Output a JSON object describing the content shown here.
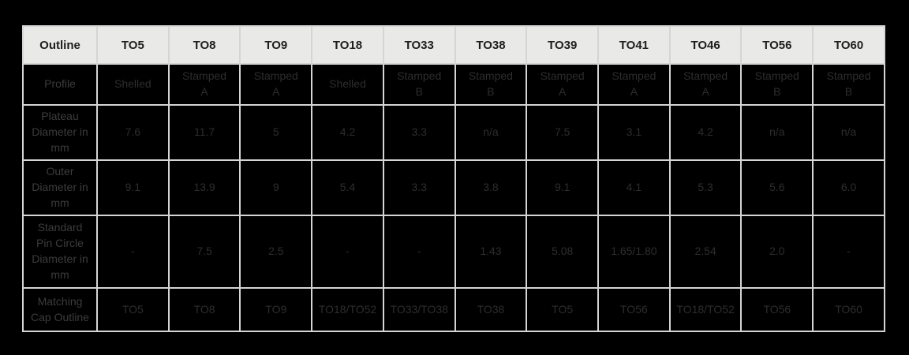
{
  "theme": {
    "page_bg": "#000000",
    "header_bg": "#e9e9e8",
    "header_text": "#1e1e1e",
    "border": "#d5d5d5",
    "cell_bg": "#000000",
    "value_text": "#2d2d2d",
    "label_text": "#3c3c3c"
  },
  "table": {
    "header": [
      "Outline",
      "TO5",
      "TO8",
      "TO9",
      "TO18",
      "TO33",
      "TO38",
      "TO39",
      "TO41",
      "TO46",
      "TO56",
      "TO60"
    ],
    "rows": [
      {
        "label": "Profile",
        "values": [
          "Shelled",
          "Stamped\nA",
          "Stamped\nA",
          "Shelled",
          "Stamped\nB",
          "Stamped\nB",
          "Stamped\nA",
          "Stamped\nA",
          "Stamped\nA",
          "Stamped\nB",
          "Stamped\nB"
        ]
      },
      {
        "label": "Plateau\nDiameter in\nmm",
        "values": [
          "7.6",
          "11.7",
          "5",
          "4.2",
          "3.3",
          "n/a",
          "7.5",
          "3.1",
          "4.2",
          "n/a",
          "n/a"
        ]
      },
      {
        "label": "Outer\nDiameter in\nmm",
        "values": [
          "9.1",
          "13.9",
          "9",
          "5.4",
          "3.3",
          "3.8",
          "9.1",
          "4.1",
          "5.3",
          "5.6",
          "6.0"
        ]
      },
      {
        "label": "Standard\nPin Circle\nDiameter in\nmm",
        "values": [
          "-",
          "7.5",
          "2.5",
          "-",
          "-",
          "1.43",
          "5.08",
          "1.65/1.80",
          "2.54",
          "2.0",
          "-"
        ]
      },
      {
        "label": "Matching\nCap Outline",
        "values": [
          "TO5",
          "TO8",
          "TO9",
          "TO18/TO52",
          "TO33/TO38",
          "TO38",
          "TO5",
          "TO56",
          "TO18/TO52",
          "TO56",
          "TO60"
        ]
      }
    ]
  }
}
